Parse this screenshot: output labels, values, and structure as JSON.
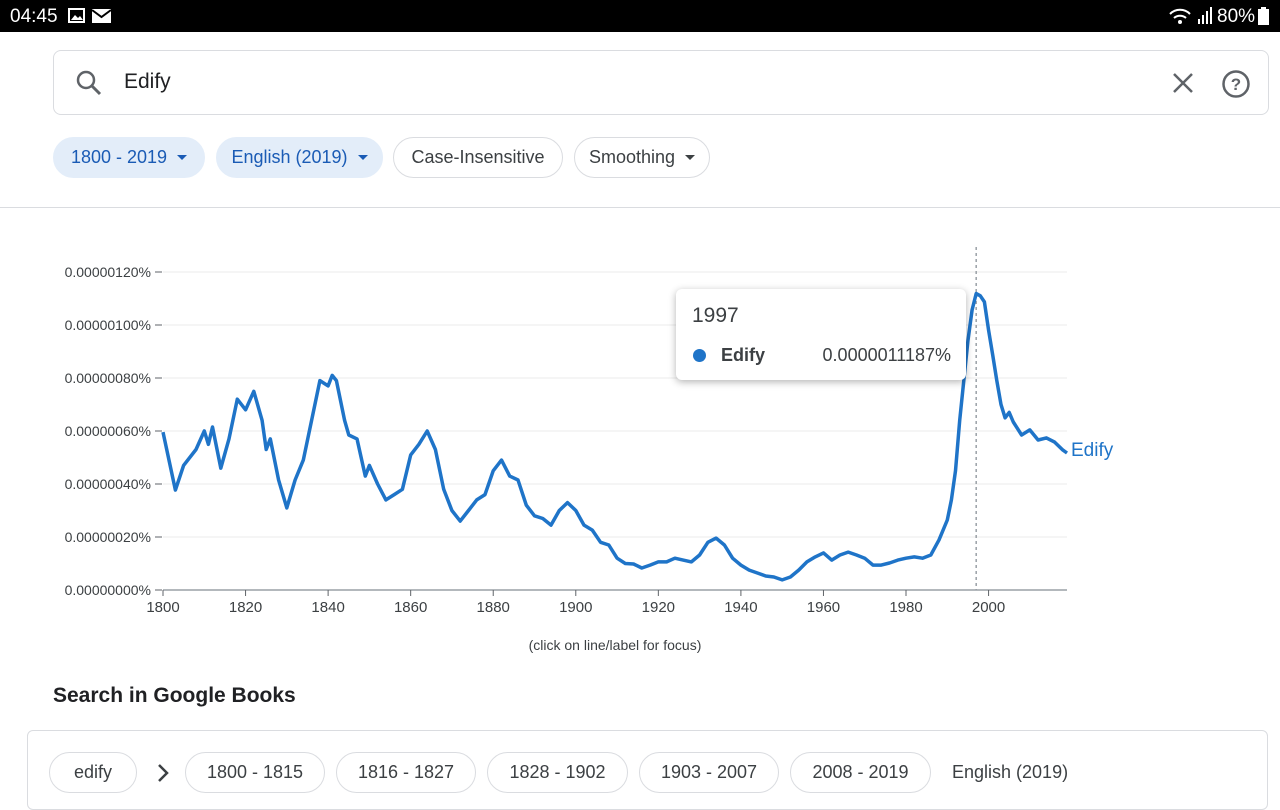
{
  "status_bar": {
    "time": "04:45",
    "battery": "80%"
  },
  "search": {
    "query": "Edify"
  },
  "filters": [
    "1800 - 2019",
    "English (2019)",
    "Case-Insensitive",
    "Smoothing"
  ],
  "chart_data": {
    "type": "line",
    "x": [
      1800,
      1803,
      1805,
      1808,
      1810,
      1811,
      1812,
      1814,
      1816,
      1818,
      1820,
      1822,
      1824,
      1825,
      1826,
      1828,
      1830,
      1832,
      1834,
      1836,
      1838,
      1840,
      1841,
      1842,
      1844,
      1845,
      1847,
      1849,
      1850,
      1852,
      1854,
      1856,
      1858,
      1860,
      1862,
      1864,
      1866,
      1868,
      1870,
      1872,
      1874,
      1876,
      1878,
      1880,
      1882,
      1884,
      1886,
      1888,
      1890,
      1892,
      1894,
      1896,
      1898,
      1900,
      1902,
      1904,
      1906,
      1908,
      1910,
      1912,
      1914,
      1916,
      1918,
      1920,
      1922,
      1924,
      1926,
      1928,
      1930,
      1932,
      1934,
      1936,
      1938,
      1940,
      1942,
      1944,
      1946,
      1948,
      1950,
      1952,
      1954,
      1956,
      1958,
      1960,
      1962,
      1964,
      1966,
      1968,
      1970,
      1972,
      1974,
      1976,
      1978,
      1980,
      1982,
      1984,
      1986,
      1988,
      1990,
      1991,
      1992,
      1993,
      1994,
      1995,
      1996,
      1997,
      1998,
      1999,
      2000,
      2001,
      2002,
      2003,
      2004,
      2005,
      2006,
      2008,
      2010,
      2012,
      2014,
      2016,
      2018,
      2019
    ],
    "series": [
      {
        "name": "Edify",
        "color": "#1f74c8",
        "values": [
          5.96e-07,
          3.77e-07,
          4.7e-07,
          5.3e-07,
          6e-07,
          5.5e-07,
          6.15e-07,
          4.6e-07,
          5.7e-07,
          7.2e-07,
          6.8e-07,
          7.5e-07,
          6.4e-07,
          5.3e-07,
          5.7e-07,
          4.15e-07,
          3.1e-07,
          4.15e-07,
          4.9e-07,
          6.4e-07,
          7.9e-07,
          7.7e-07,
          8.1e-07,
          7.9e-07,
          6.4e-07,
          5.85e-07,
          5.7e-07,
          4.3e-07,
          4.7e-07,
          4e-07,
          3.4e-07,
          3.6e-07,
          3.8e-07,
          5.1e-07,
          5.5e-07,
          6e-07,
          5.3e-07,
          3.8e-07,
          3e-07,
          2.6e-07,
          3e-07,
          3.4e-07,
          3.6e-07,
          4.5e-07,
          4.9e-07,
          4.3e-07,
          4.15e-07,
          3.2e-07,
          2.8e-07,
          2.7e-07,
          2.45e-07,
          3e-07,
          3.3e-07,
          3e-07,
          2.45e-07,
          2.26e-07,
          1.8e-07,
          1.7e-07,
          1.2e-07,
          1e-07,
          9.8e-08,
          8.3e-08,
          9.4e-08,
          1.06e-07,
          1.06e-07,
          1.2e-07,
          1.13e-07,
          1.06e-07,
          1.32e-07,
          1.8e-07,
          1.96e-07,
          1.7e-07,
          1.2e-07,
          9.4e-08,
          7.5e-08,
          6.4e-08,
          5.3e-08,
          4.9e-08,
          3.8e-08,
          4.9e-08,
          7.5e-08,
          1.06e-07,
          1.25e-07,
          1.4e-07,
          1.13e-07,
          1.32e-07,
          1.43e-07,
          1.32e-07,
          1.2e-07,
          9.4e-08,
          9.4e-08,
          1.02e-07,
          1.13e-07,
          1.2e-07,
          1.25e-07,
          1.2e-07,
          1.32e-07,
          1.89e-07,
          2.64e-07,
          3.4e-07,
          4.5e-07,
          6.4e-07,
          7.9e-07,
          9.4e-07,
          1.057e-06,
          1.1187e-06,
          1.11e-06,
          1.087e-06,
          9.8e-07,
          8.87e-07,
          7.9e-07,
          7e-07,
          6.5e-07,
          6.7e-07,
          6.34e-07,
          5.85e-07,
          6.04e-07,
          5.66e-07,
          5.74e-07,
          5.58e-07,
          5.28e-07,
          5.17e-07
        ]
      }
    ],
    "xlim": [
      1800,
      2019
    ],
    "xticks": [
      1800,
      1820,
      1840,
      1860,
      1880,
      1900,
      1920,
      1940,
      1960,
      1980,
      2000
    ],
    "ylim": [
      0,
      1.2e-06
    ],
    "yticks": [
      {
        "value": 0,
        "label": "0.00000000%"
      },
      {
        "value": 2e-07,
        "label": "0.00000020%"
      },
      {
        "value": 4e-07,
        "label": "0.00000040%"
      },
      {
        "value": 6e-07,
        "label": "0.00000060%"
      },
      {
        "value": 8e-07,
        "label": "0.00000080%"
      },
      {
        "value": 1e-06,
        "label": "0.00000100%"
      },
      {
        "value": 1.2e-06,
        "label": "0.00000120%"
      }
    ],
    "grid": true,
    "tooltip": {
      "x": 1997,
      "value": 1.1187e-06,
      "value_label": "0.0000011187%"
    },
    "note": "(click on line/label for focus)"
  },
  "books": {
    "title": "Search in Google Books",
    "query": "edify",
    "ranges": [
      "1800 - 1815",
      "1816 - 1827",
      "1828 - 1902",
      "1903 - 2007",
      "2008 - 2019"
    ],
    "language": "English (2019)"
  }
}
